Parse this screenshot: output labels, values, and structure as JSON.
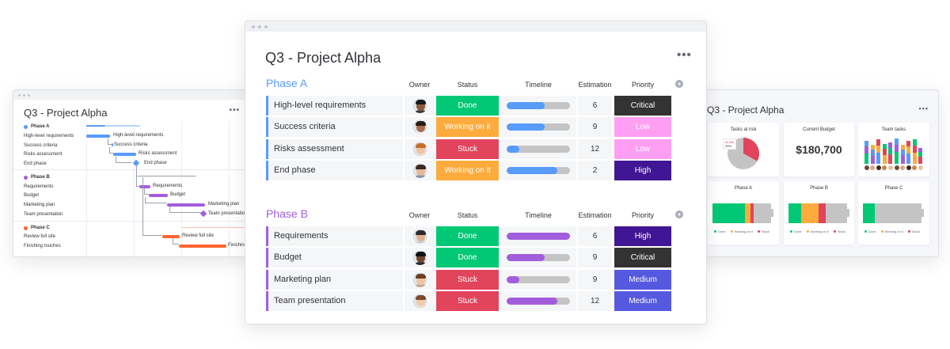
{
  "colors": {
    "done": "#00c875",
    "working": "#fdab3d",
    "stuck": "#e2445c",
    "critical": "#333333",
    "low": "#ff9ff3",
    "high": "#401694",
    "medium": "#5559df",
    "phase_a": "#579bfc",
    "phase_b": "#a25ddc",
    "phase_c": "#ff642e",
    "timeline_track": "#c4c4c4"
  },
  "main": {
    "title": "Q3 - Project Alpha",
    "more_icon": "ellipsis-icon",
    "columns": {
      "owner": "Owner",
      "status": "Status",
      "timeline": "Timeline",
      "estimation": "Estimation",
      "priority": "Priority",
      "add": "+"
    },
    "groups": [
      {
        "title": "Phase A",
        "color": "#579bfc",
        "rows": [
          {
            "name": "High-level requirements",
            "status": "Done",
            "status_color": "#00c875",
            "timeline_progress": 0.6,
            "estimation": "6",
            "priority": "Critical",
            "priority_color": "#333333"
          },
          {
            "name": "Success criteria",
            "status": "Working on it",
            "status_color": "#fdab3d",
            "timeline_progress": 0.6,
            "estimation": "9",
            "priority": "Low",
            "priority_color": "#ff9ff3"
          },
          {
            "name": "Risks assessment",
            "status": "Stuck",
            "status_color": "#e2445c",
            "timeline_progress": 0.2,
            "estimation": "12",
            "priority": "Low",
            "priority_color": "#ff9ff3"
          },
          {
            "name": "End phase",
            "status": "Working on it",
            "status_color": "#fdab3d",
            "timeline_progress": 0.8,
            "estimation": "2",
            "priority": "High",
            "priority_color": "#401694"
          }
        ]
      },
      {
        "title": "Phase B",
        "color": "#a25ddc",
        "rows": [
          {
            "name": "Requirements",
            "status": "Done",
            "status_color": "#00c875",
            "timeline_progress": 1.0,
            "estimation": "6",
            "priority": "High",
            "priority_color": "#401694"
          },
          {
            "name": "Budget",
            "status": "Done",
            "status_color": "#00c875",
            "timeline_progress": 0.6,
            "estimation": "9",
            "priority": "Critical",
            "priority_color": "#333333"
          },
          {
            "name": "Marketing plan",
            "status": "Stuck",
            "status_color": "#e2445c",
            "timeline_progress": 0.2,
            "estimation": "9",
            "priority": "Medium",
            "priority_color": "#5559df"
          },
          {
            "name": "Team presentation",
            "status": "Stuck",
            "status_color": "#e2445c",
            "timeline_progress": 0.8,
            "estimation": "12",
            "priority": "Medium",
            "priority_color": "#5559df"
          }
        ]
      }
    ]
  },
  "gantt": {
    "title": "Q3 - Project Alpha",
    "phases": [
      {
        "title": "Phase A",
        "color": "#579bfc",
        "items": [
          "High-level requirements",
          "Success criteria",
          "Risks assessment",
          "End phase"
        ]
      },
      {
        "title": "Phase B",
        "color": "#a25ddc",
        "items": [
          "Requirements",
          "Budget",
          "Marketing plan",
          "Team presentation"
        ]
      },
      {
        "title": "Phase C",
        "color": "#ff642e",
        "items": [
          "Review full site",
          "Finishing touches"
        ]
      }
    ],
    "bar_labels": [
      "High-level requirements",
      "Success criteria",
      "Risks assessment",
      "End phase",
      "Requirements",
      "Budget",
      "Marketing plan",
      "Team presentation",
      "Review full site",
      "Finishing"
    ]
  },
  "dashboard": {
    "title": "Q3 - Project Alpha",
    "widgets": {
      "tasks_at_risk": {
        "title": "Tasks at risk",
        "tooltip_label": "At risk",
        "tooltip_value": "33%",
        "risk_fraction": 0.33
      },
      "budget": {
        "title": "Current Budget",
        "value": "$180,700"
      },
      "team": {
        "title": "Team tasks"
      },
      "phase_a": {
        "title": "Phase A",
        "done": 0.55,
        "working": 0.1,
        "stuck": 0.05
      },
      "phase_b": {
        "title": "Phase B",
        "done": 0.22,
        "working": 0.3,
        "stuck": 0.12
      },
      "phase_c": {
        "title": "Phase C",
        "done": 0.2,
        "working": 0.0,
        "stuck": 0.0
      }
    },
    "legend": {
      "done": "Done",
      "working": "Working on it",
      "stuck": "Stuck"
    }
  }
}
